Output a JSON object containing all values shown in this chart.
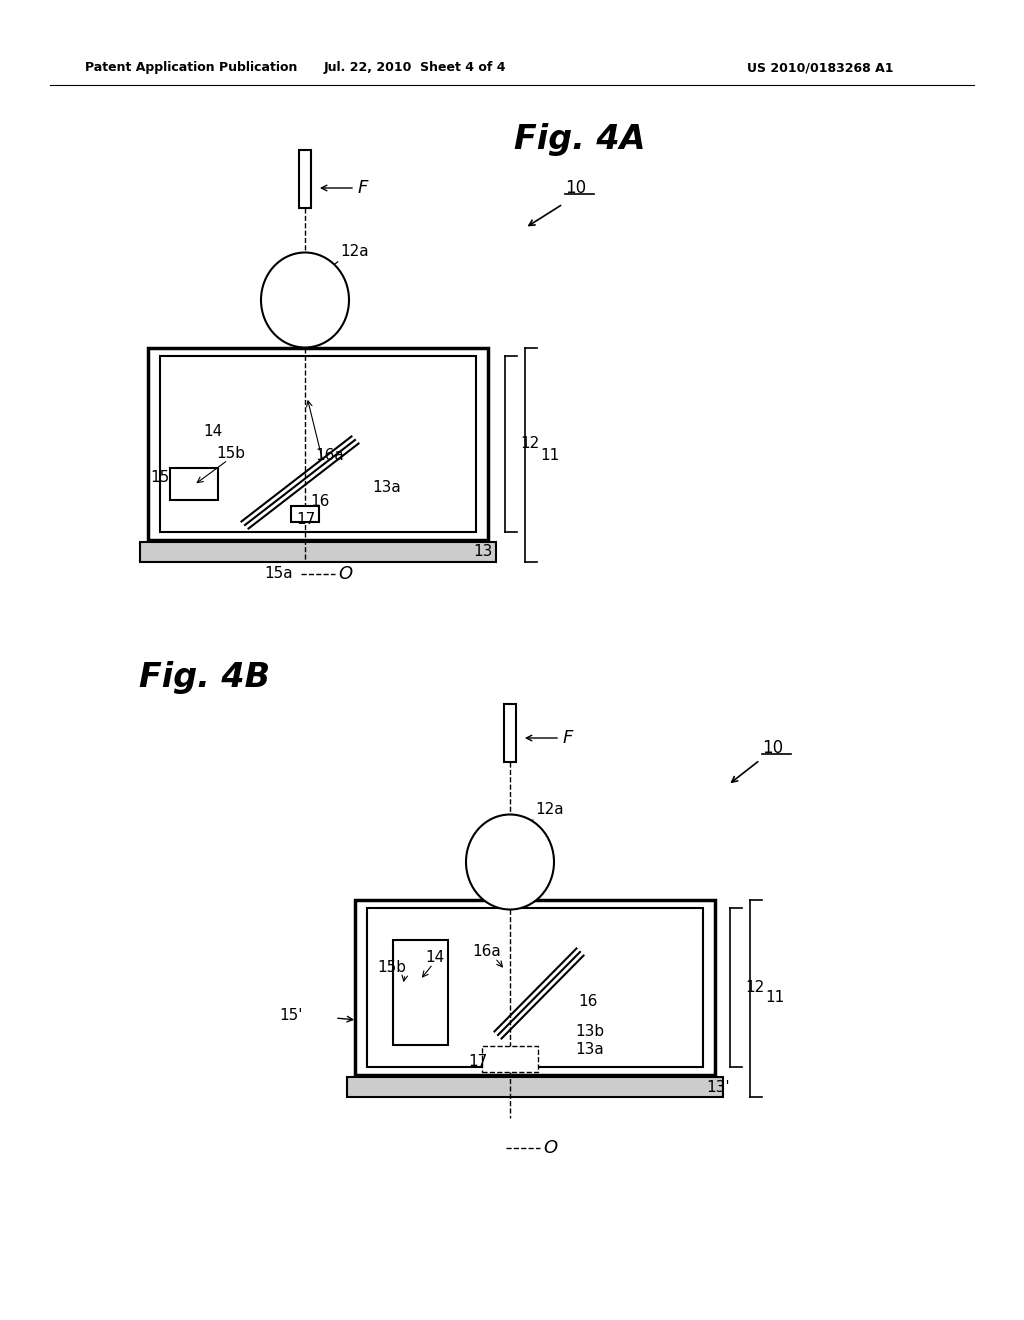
{
  "bg_color": "#ffffff",
  "header_text1": "Patent Application Publication",
  "header_text2": "Jul. 22, 2010  Sheet 4 of 4",
  "header_text3": "US 2010/0183268 A1",
  "fig4a_title": "Fig. 4A",
  "fig4b_title": "Fig. 4B"
}
